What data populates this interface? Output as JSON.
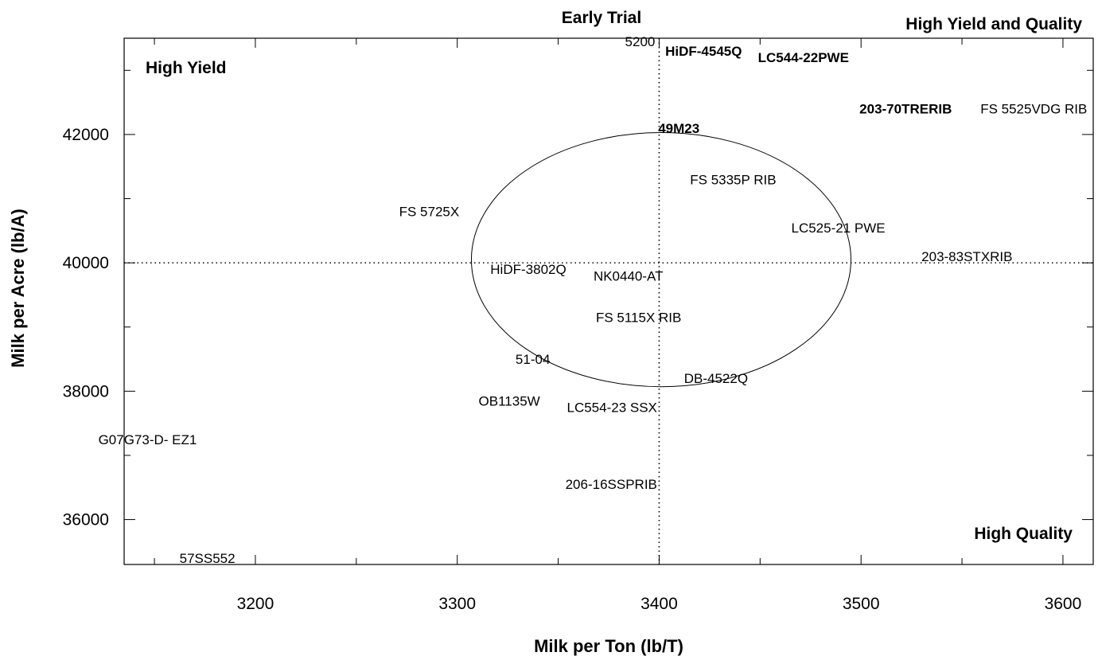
{
  "chart_data": {
    "type": "scatter",
    "xlabel": "Milk per Ton (lb/T)",
    "ylabel": "Milk per Acre (lb/A)",
    "xlim": [
      3135,
      3615
    ],
    "ylim": [
      35300,
      43500
    ],
    "x_ticks": [
      3200,
      3300,
      3400,
      3500,
      3600
    ],
    "y_ticks": [
      36000,
      38000,
      40000,
      42000
    ],
    "x_tick_labels": [
      "3200",
      "3300",
      "3400",
      "3500",
      "3600"
    ],
    "y_tick_labels": [
      "36000",
      "38000",
      "40000",
      "42000"
    ],
    "reference_lines": {
      "x": 3400,
      "y": 40000,
      "style": "dotted"
    },
    "ellipse": {
      "center": [
        3401,
        40050
      ],
      "x_radius": 94,
      "y_radius": 1980
    },
    "quadrant_labels": {
      "top_center": "Early Trial",
      "top_right": "High Yield and Quality",
      "top_left": "High Yield",
      "bottom_right": "High Quality"
    },
    "grid": false,
    "points": [
      {
        "label": "5200",
        "x": 3398,
        "y": 43450,
        "bold": false
      },
      {
        "label": "HiDF-4545Q",
        "x": 3441,
        "y": 43300,
        "bold": true
      },
      {
        "label": "LC544-22PWE",
        "x": 3494,
        "y": 43200,
        "bold": true
      },
      {
        "label": "203-70TRERIB",
        "x": 3545,
        "y": 42400,
        "bold": true
      },
      {
        "label": "FS 5525VDG RIB",
        "x": 3612,
        "y": 42400,
        "bold": false
      },
      {
        "label": "49M23",
        "x": 3420,
        "y": 42100,
        "bold": true
      },
      {
        "label": "FS 5335P RIB",
        "x": 3458,
        "y": 41300,
        "bold": false
      },
      {
        "label": "FS 5725X",
        "x": 3301,
        "y": 40800,
        "bold": false
      },
      {
        "label": "LC525-21 PWE",
        "x": 3512,
        "y": 40550,
        "bold": false
      },
      {
        "label": "203-83STXRIB",
        "x": 3575,
        "y": 40100,
        "bold": false
      },
      {
        "label": "HiDF-3802Q",
        "x": 3354,
        "y": 39900,
        "bold": false
      },
      {
        "label": "NK0440-AT",
        "x": 3402,
        "y": 39800,
        "bold": false
      },
      {
        "label": "FS 5115X RIB",
        "x": 3411,
        "y": 39150,
        "bold": false
      },
      {
        "label": "51-04",
        "x": 3346,
        "y": 38500,
        "bold": false
      },
      {
        "label": "DB-4522Q",
        "x": 3444,
        "y": 38200,
        "bold": false
      },
      {
        "label": "OB1135W",
        "x": 3341,
        "y": 37850,
        "bold": false
      },
      {
        "label": "LC554-23 SSX",
        "x": 3399,
        "y": 37750,
        "bold": false
      },
      {
        "label": "G07G73-D- EZ1",
        "x": 3171,
        "y": 37250,
        "bold": false
      },
      {
        "label": "206-16SSPRIB",
        "x": 3399,
        "y": 36550,
        "bold": false
      },
      {
        "label": "57SS552",
        "x": 3190,
        "y": 35400,
        "bold": false
      }
    ]
  }
}
